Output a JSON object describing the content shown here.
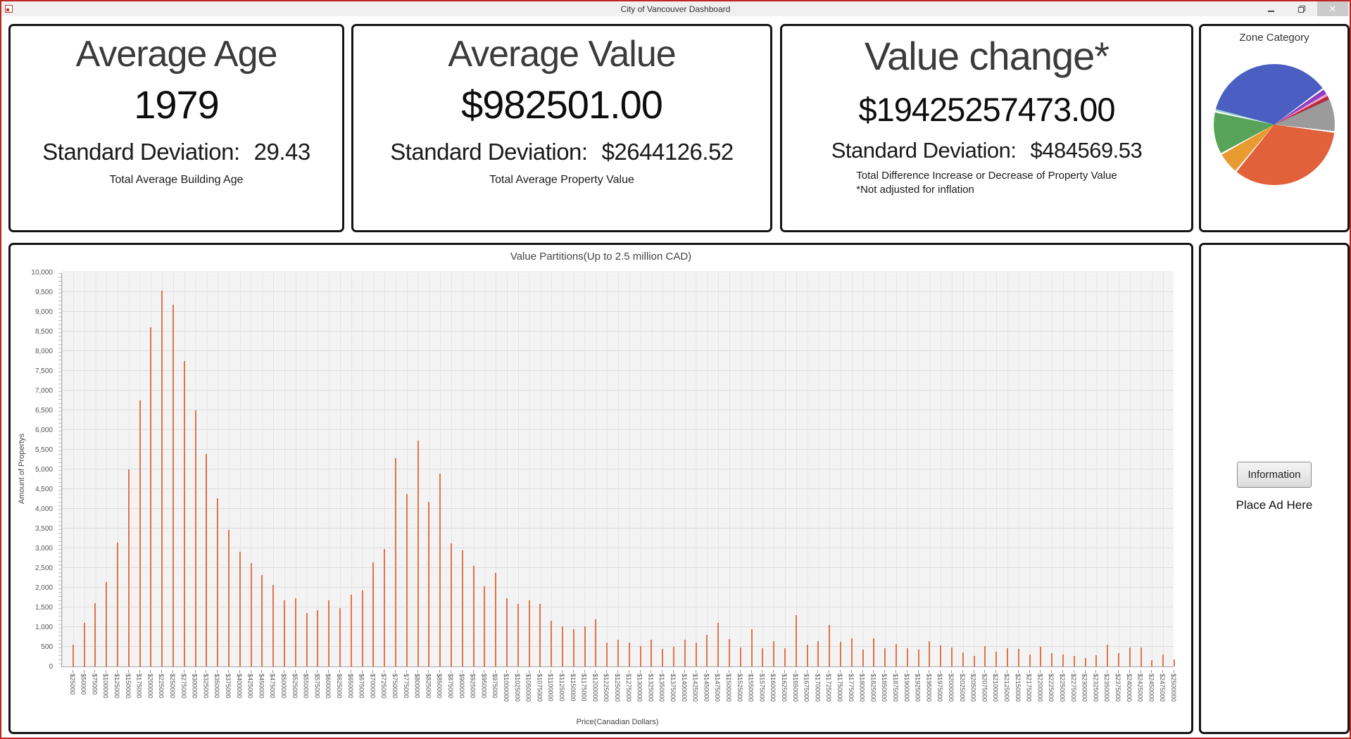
{
  "window": {
    "title": "City of Vancouver Dashboard",
    "controls": {
      "close_glyph": "✕"
    }
  },
  "cards": [
    {
      "title": "Average Age",
      "value": "1979",
      "sd_label": "Standard Deviation:",
      "sd_value": "29.43",
      "caption": "Total Average Building Age"
    },
    {
      "title": "Average Value",
      "value": "$982501.00",
      "sd_label": "Standard Deviation:",
      "sd_value": "$2644126.52",
      "caption": "Total Average Property Value"
    },
    {
      "title": "Value change*",
      "value": "$19425257473.00",
      "sd_label": "Standard Deviation:",
      "sd_value": "$484569.53",
      "caption": "Total Difference Increase or Decrease of Property Value",
      "caption2": "*Not adjusted for inflation"
    }
  ],
  "zone_panel": {
    "title": "Zone Category"
  },
  "ad_panel": {
    "button_label": "Information",
    "text": "Place Ad Here"
  },
  "chart_data": [
    {
      "type": "pie",
      "title": "Zone Category",
      "legend_position": "none",
      "start_angle_deg": 285,
      "slices": [
        {
          "name": "blue-slice",
          "color": "#4a5fc1",
          "pct": 36.0
        },
        {
          "name": "purple-slice",
          "color": "#8d3fc6",
          "pct": 1.3
        },
        {
          "name": "pink-slice",
          "color": "#f2a0c8",
          "pct": 0.7
        },
        {
          "name": "crimson-slice",
          "color": "#b52c42",
          "pct": 1.0
        },
        {
          "name": "gray-slice",
          "color": "#9b9b9b",
          "pct": 9.0
        },
        {
          "name": "orange-slice",
          "color": "#e0613a",
          "pct": 34.0
        },
        {
          "name": "amber-slice",
          "color": "#e89b30",
          "pct": 6.0
        },
        {
          "name": "green-slice",
          "color": "#57a359",
          "pct": 11.5
        },
        {
          "name": "teal-slice",
          "color": "#90d2ca",
          "pct": 0.5
        }
      ]
    },
    {
      "type": "bar",
      "title": "Value Partitions(Up to 2.5 million CAD)",
      "xlabel": "Price(Canadian Dollars)",
      "ylabel": "Amount of Propertys",
      "ylim": [
        0,
        10000
      ],
      "ytick_step": 500,
      "grid": true,
      "bar_color": "#e0744c",
      "categories": [
        "$25000",
        "$50000",
        "$75000",
        "$100000",
        "$125000",
        "$150000",
        "$175000",
        "$200000",
        "$225000",
        "$250000",
        "$275000",
        "$300000",
        "$325000",
        "$350000",
        "$375000",
        "$400000",
        "$425000",
        "$450000",
        "$475000",
        "$500000",
        "$525000",
        "$550000",
        "$575000",
        "$600000",
        "$625000",
        "$650000",
        "$675000",
        "$700000",
        "$725000",
        "$750000",
        "$775000",
        "$800000",
        "$825000",
        "$850000",
        "$875000",
        "$900000",
        "$925000",
        "$950000",
        "$975000",
        "$1000000",
        "$1025000",
        "$1050000",
        "$1075000",
        "$1100000",
        "$1125000",
        "$1150000",
        "$1175000",
        "$1200000",
        "$1225000",
        "$1250000",
        "$1275000",
        "$1300000",
        "$1325000",
        "$1350000",
        "$1375000",
        "$1400000",
        "$1425000",
        "$1450000",
        "$1475000",
        "$1500000",
        "$1525000",
        "$1550000",
        "$1575000",
        "$1600000",
        "$1625000",
        "$1650000",
        "$1675000",
        "$1700000",
        "$1725000",
        "$1750000",
        "$1775000",
        "$1800000",
        "$1825000",
        "$1850000",
        "$1875000",
        "$1900000",
        "$1925000",
        "$1950000",
        "$1975000",
        "$2000000",
        "$2025000",
        "$2050000",
        "$2075000",
        "$2100000",
        "$2125000",
        "$2150000",
        "$2175000",
        "$2200000",
        "$2225000",
        "$2250000",
        "$2275000",
        "$2300000",
        "$2325000",
        "$2350000",
        "$2375000",
        "$2400000",
        "$2425000",
        "$2450000",
        "$2475000",
        "$2500000"
      ],
      "values": [
        550,
        1100,
        1600,
        2150,
        3150,
        5000,
        6750,
        8600,
        9530,
        9170,
        7750,
        6500,
        5400,
        4260,
        3460,
        2910,
        2620,
        2320,
        2070,
        1680,
        1740,
        1360,
        1430,
        1670,
        1490,
        1830,
        1930,
        2650,
        2980,
        5290,
        4380,
        5740,
        4170,
        4900,
        3120,
        2950,
        2560,
        2040,
        2380,
        1740,
        1590,
        1670,
        1590,
        1160,
        1010,
        950,
        1010,
        1200,
        610,
        680,
        600,
        520,
        670,
        450,
        500,
        680,
        600,
        810,
        1110,
        690,
        490,
        950,
        470,
        650,
        470,
        1300,
        560,
        650,
        1050,
        630,
        710,
        430,
        720,
        470,
        580,
        460,
        430,
        640,
        530,
        490,
        360,
        270,
        520,
        370,
        470,
        440,
        300,
        500,
        340,
        310,
        270,
        210,
        280,
        560,
        340,
        490,
        490,
        160,
        310,
        180
      ]
    }
  ]
}
